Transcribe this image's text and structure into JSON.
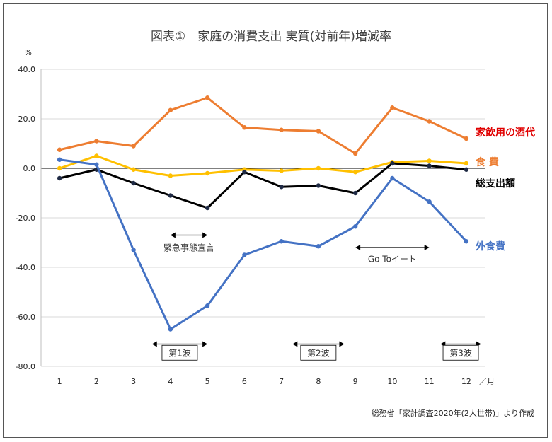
{
  "chart_data": {
    "type": "line",
    "title": "図表①　家庭の消費支出 実質(対前年)増減率",
    "ylabel": "%",
    "xlabel": "／月",
    "ylim": [
      -80,
      40
    ],
    "yticks": [
      "40.0",
      "20.0",
      "0.0",
      "-20.0",
      "-40.0",
      "-60.0",
      "-80.0"
    ],
    "ytick_values": [
      40,
      20,
      0,
      -20,
      -40,
      -60,
      -80
    ],
    "categories": [
      "1",
      "2",
      "3",
      "4",
      "5",
      "6",
      "7",
      "8",
      "9",
      "10",
      "11",
      "12"
    ],
    "grid": "horizontal",
    "series": [
      {
        "name": "家飲用の酒代",
        "color": "#ED7D31",
        "label_color": "#E00000",
        "values": [
          7.5,
          11.0,
          9.0,
          23.5,
          28.5,
          16.5,
          15.5,
          15.0,
          6.0,
          24.5,
          19.0,
          12.0
        ]
      },
      {
        "name": "食 費",
        "color": "#FFC000",
        "label_color": "#ED7D31",
        "values": [
          0.0,
          5.0,
          -0.5,
          -3.0,
          -2.0,
          -0.5,
          -1.0,
          0.0,
          -1.5,
          2.5,
          3.0,
          2.0
        ]
      },
      {
        "name": "総支出額",
        "color": "#000000",
        "label_color": "#000000",
        "values": [
          -4.0,
          -0.5,
          -6.0,
          -11.0,
          -16.0,
          -1.5,
          -7.5,
          -7.0,
          -10.0,
          2.0,
          1.0,
          -0.5
        ]
      },
      {
        "name": "外食費",
        "color": "#4472C4",
        "label_color": "#4472C4",
        "values": [
          3.5,
          1.5,
          -33.0,
          -65.0,
          -55.5,
          -35.0,
          -29.5,
          -31.5,
          -23.5,
          -4.0,
          -13.5,
          -29.5
        ]
      }
    ],
    "annotations": [
      {
        "text": "緊急事態宣言",
        "from_month": 4,
        "to_month": 5,
        "arrow_y": -27,
        "text_y": -33
      },
      {
        "text": "Go Toイート",
        "from_month": 9,
        "to_month": 11,
        "arrow_y": -32,
        "text_y": -37.5
      },
      {
        "text": "第1波",
        "from_month": 3.5,
        "to_month": 5,
        "arrow_y": -71,
        "text_y": -75.5,
        "boxed": true
      },
      {
        "text": "第2波",
        "from_month": 7.3,
        "to_month": 8.7,
        "arrow_y": -71,
        "text_y": -75.5,
        "boxed": true
      },
      {
        "text": "第3波",
        "from_month": 11.3,
        "to_month": 12.4,
        "arrow_y": -71,
        "text_y": -75.5,
        "boxed": true
      }
    ],
    "source": "総務省「家計調査2020年(2人世帯)」より作成"
  }
}
